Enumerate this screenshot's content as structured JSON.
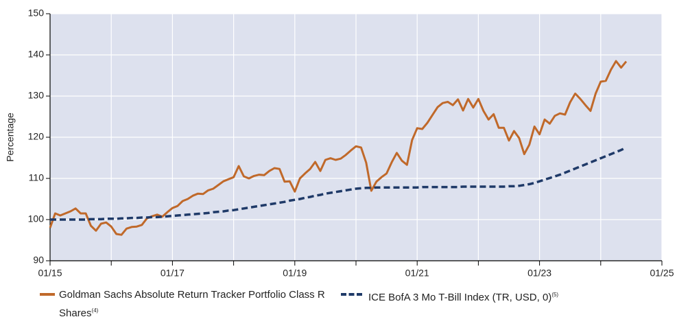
{
  "chart_data": {
    "type": "line",
    "y_label": "Percentage",
    "x": [
      "01/15",
      "02/15",
      "03/15",
      "04/15",
      "05/15",
      "06/15",
      "07/15",
      "08/15",
      "09/15",
      "10/15",
      "11/15",
      "12/15",
      "01/16",
      "02/16",
      "03/16",
      "04/16",
      "05/16",
      "06/16",
      "07/16",
      "08/16",
      "09/16",
      "10/16",
      "11/16",
      "12/16",
      "01/17",
      "02/17",
      "03/17",
      "04/17",
      "05/17",
      "06/17",
      "07/17",
      "08/17",
      "09/17",
      "10/17",
      "11/17",
      "12/17",
      "01/18",
      "02/18",
      "03/18",
      "04/18",
      "05/18",
      "06/18",
      "07/18",
      "08/18",
      "09/18",
      "10/18",
      "11/18",
      "12/18",
      "01/19",
      "02/19",
      "03/19",
      "04/19",
      "05/19",
      "06/19",
      "07/19",
      "08/19",
      "09/19",
      "10/19",
      "11/19",
      "12/19",
      "01/20",
      "02/20",
      "03/20",
      "04/20",
      "05/20",
      "06/20",
      "07/20",
      "08/20",
      "09/20",
      "10/20",
      "11/20",
      "12/20",
      "01/21",
      "02/21",
      "03/21",
      "04/21",
      "05/21",
      "06/21",
      "07/21",
      "08/21",
      "09/21",
      "10/21",
      "11/21",
      "12/21",
      "01/22",
      "02/22",
      "03/22",
      "04/22",
      "05/22",
      "06/22",
      "07/22",
      "08/22",
      "09/22",
      "10/22",
      "11/22",
      "12/22",
      "01/23",
      "02/23",
      "03/23",
      "04/23",
      "05/23",
      "06/23",
      "07/23",
      "08/23",
      "09/23",
      "10/23",
      "11/23",
      "12/23",
      "01/24",
      "02/24",
      "03/24",
      "04/24",
      "05/24",
      "06/24"
    ],
    "series": [
      {
        "name": "Goldman Sachs Absolute Return Tracker Portfolio Class R Shares",
        "footnote": "(4)",
        "color": "#c0692a",
        "dash": false,
        "values": [
          98,
          101.5,
          101,
          101.5,
          102,
          102.7,
          101.5,
          101.5,
          98.5,
          97.3,
          99,
          99.3,
          98.3,
          96.5,
          96.3,
          97.8,
          98.2,
          98.3,
          98.7,
          100.3,
          100.8,
          101.2,
          100.7,
          101.8,
          102.8,
          103.3,
          104.5,
          105,
          105.8,
          106.3,
          106.2,
          107.1,
          107.5,
          108.4,
          109.3,
          109.8,
          110.3,
          113,
          110.5,
          110,
          110.6,
          110.9,
          110.8,
          111.8,
          112.5,
          112.3,
          109.2,
          109.3,
          106.8,
          110,
          111.2,
          112.3,
          114,
          111.8,
          114.5,
          114.9,
          114.5,
          114.8,
          115.7,
          116.8,
          117.8,
          117.5,
          113.8,
          107,
          109.2,
          110.3,
          111.2,
          113.9,
          116.2,
          114.3,
          113.3,
          119.3,
          122.2,
          122,
          123.5,
          125.4,
          127.3,
          128.3,
          128.6,
          127.8,
          129.2,
          126.5,
          129.3,
          127.2,
          129.3,
          126.4,
          124.3,
          125.6,
          122.3,
          122.3,
          119.2,
          121.5,
          119.8,
          115.9,
          118.2,
          122.6,
          120.7,
          124.3,
          123.3,
          125.2,
          125.8,
          125.5,
          128.5,
          130.6,
          129.3,
          127.8,
          126.4,
          130.6,
          133.5,
          133.7,
          136.4,
          138.5,
          136.9,
          138.4
        ]
      },
      {
        "name": "ICE BofA 3 Mo T-Bill Index (TR, USD, 0)",
        "footnote": "(5)",
        "color": "#1f3a68",
        "dash": true,
        "values": [
          100,
          100,
          100,
          100,
          100,
          100,
          100,
          100,
          100.1,
          100.1,
          100.1,
          100.2,
          100.2,
          100.2,
          100.3,
          100.3,
          100.4,
          100.4,
          100.5,
          100.5,
          100.6,
          100.6,
          100.7,
          100.8,
          100.9,
          101,
          101.1,
          101.2,
          101.3,
          101.4,
          101.5,
          101.6,
          101.8,
          101.9,
          102,
          102.2,
          102.3,
          102.5,
          102.7,
          102.9,
          103.1,
          103.3,
          103.5,
          103.7,
          103.9,
          104.1,
          104.3,
          104.6,
          104.8,
          105,
          105.3,
          105.5,
          105.8,
          106,
          106.3,
          106.5,
          106.7,
          106.9,
          107.1,
          107.3,
          107.5,
          107.6,
          107.7,
          107.7,
          107.8,
          107.8,
          107.8,
          107.8,
          107.8,
          107.8,
          107.8,
          107.8,
          107.8,
          107.9,
          107.9,
          107.9,
          107.9,
          107.9,
          107.9,
          107.9,
          107.9,
          108,
          108,
          108,
          108,
          108,
          108,
          108,
          108,
          108,
          108.1,
          108.1,
          108.2,
          108.4,
          108.6,
          108.9,
          109.3,
          109.7,
          110.1,
          110.5,
          110.9,
          111.4,
          111.9,
          112.4,
          112.9,
          113.4,
          113.9,
          114.4,
          114.9,
          115.4,
          115.9,
          116.4,
          116.9,
          117.5
        ]
      }
    ],
    "xlim": [
      "01/15",
      "01/25"
    ],
    "xticks": [
      "01/15",
      "01/17",
      "01/19",
      "01/21",
      "01/23",
      "01/25"
    ],
    "ylim": [
      90,
      150
    ],
    "yticks": [
      90,
      100,
      110,
      120,
      130,
      140,
      150
    ],
    "grid": true,
    "legend": "bottom"
  }
}
